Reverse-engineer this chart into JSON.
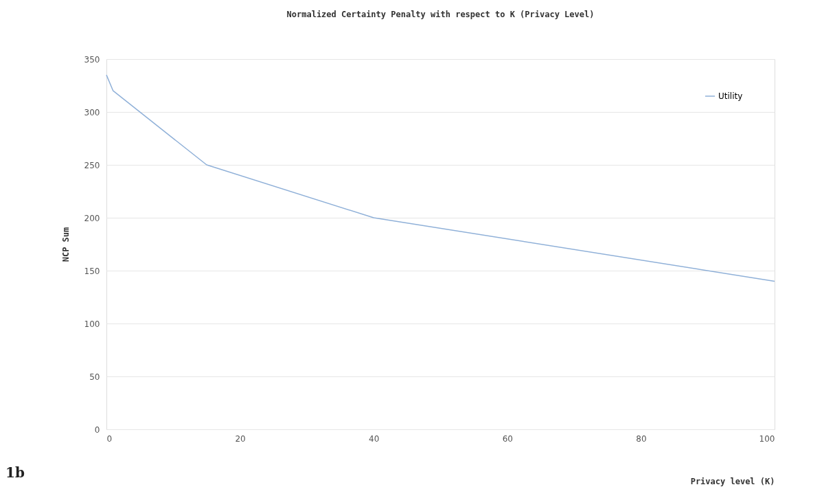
{
  "chart_data": {
    "type": "line",
    "title": "Normalized Certainty Penalty with respect to K (Privacy Level)",
    "xlabel": "Privacy level (K)",
    "ylabel": "NCP Sum",
    "x": [
      0,
      1,
      15,
      40,
      100
    ],
    "series": [
      {
        "name": "Utility",
        "color": "#8fb0d8",
        "values": [
          335,
          320,
          250,
          200,
          140
        ]
      }
    ],
    "xlim": [
      0,
      100
    ],
    "xticks": [
      0,
      20,
      40,
      60,
      80,
      100
    ],
    "ylim": [
      0,
      350
    ],
    "yticks": [
      0,
      50,
      100,
      150,
      200,
      250,
      300,
      350
    ],
    "grid": "y",
    "legend": "top right",
    "marker": "none",
    "line_style": "solid",
    "annotations": [
      "1b"
    ]
  }
}
